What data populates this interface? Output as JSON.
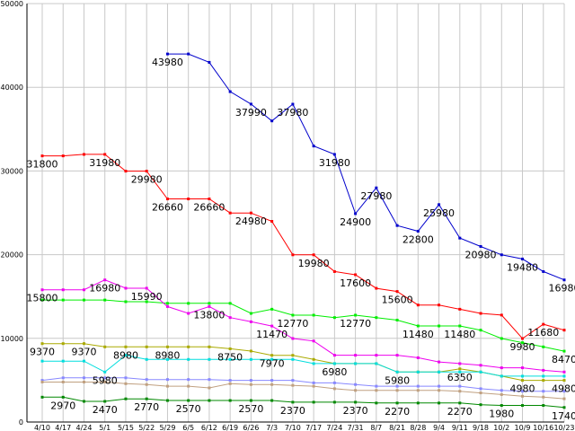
{
  "chart_data": {
    "type": "line",
    "x": [
      "4/10",
      "4/17",
      "4/24",
      "5/1",
      "5/15",
      "5/22",
      "5/29",
      "6/5",
      "6/12",
      "6/19",
      "6/26",
      "7/3",
      "7/10",
      "7/17",
      "7/24",
      "7/31",
      "8/7",
      "8/21",
      "8/28",
      "9/4",
      "9/11",
      "9/18",
      "10/2",
      "10/9",
      "10/16",
      "10/23"
    ],
    "yticks": [
      0,
      10000,
      20000,
      30000,
      40000,
      50000
    ],
    "ylim": [
      0,
      50000
    ],
    "grid": true,
    "series": [
      {
        "color": "#0000cc",
        "values": [
          null,
          null,
          null,
          null,
          null,
          null,
          43980,
          43980,
          42980,
          39480,
          37990,
          35980,
          37980,
          32980,
          31980,
          24900,
          27980,
          23480,
          22800,
          25980,
          21980,
          20980,
          19980,
          19480,
          17980,
          16980
        ],
        "labels": [
          null,
          null,
          null,
          null,
          null,
          null,
          "43980",
          null,
          null,
          null,
          "37990",
          null,
          "37980",
          null,
          "31980",
          "24900",
          "27980",
          null,
          "22800",
          "25980",
          null,
          "20980",
          null,
          "19480",
          null,
          "16980"
        ]
      },
      {
        "color": "#ff0000",
        "values": [
          31800,
          31800,
          31980,
          31980,
          29980,
          29980,
          26660,
          26660,
          26660,
          24980,
          24980,
          23980,
          19980,
          19980,
          17980,
          17600,
          15980,
          15600,
          13980,
          13980,
          13480,
          12980,
          12780,
          9980,
          11680,
          10980
        ],
        "labels": [
          "31800",
          null,
          null,
          "31980",
          null,
          "29980",
          "26660",
          null,
          "26660",
          null,
          "24980",
          null,
          null,
          "19980",
          null,
          "17600",
          null,
          "15600",
          null,
          null,
          null,
          null,
          null,
          "9980",
          "11680",
          null
        ]
      },
      {
        "color": "#00ee00",
        "values": [
          14580,
          14580,
          14580,
          14580,
          14380,
          14380,
          14180,
          14180,
          14180,
          14180,
          12980,
          13480,
          12770,
          12770,
          12480,
          12770,
          12480,
          12180,
          11480,
          11480,
          11480,
          10980,
          9980,
          9480,
          8980,
          8470
        ],
        "labels": [
          null,
          null,
          null,
          null,
          null,
          null,
          null,
          null,
          null,
          null,
          null,
          null,
          "12770",
          null,
          null,
          "12770",
          null,
          null,
          "11480",
          null,
          "11480",
          null,
          null,
          null,
          null,
          "8470"
        ]
      },
      {
        "color": "#ee00ee",
        "values": [
          15800,
          15800,
          15800,
          16980,
          15990,
          15990,
          13800,
          12980,
          13800,
          12480,
          11980,
          11470,
          9980,
          9680,
          7980,
          7980,
          7980,
          7980,
          7680,
          7180,
          6980,
          6780,
          6480,
          6480,
          6180,
          5980
        ],
        "labels": [
          "15800",
          null,
          null,
          "16980",
          null,
          "15990",
          null,
          null,
          "13800",
          null,
          null,
          "11470",
          null,
          null,
          null,
          null,
          null,
          null,
          null,
          null,
          null,
          null,
          null,
          null,
          null,
          null
        ]
      },
      {
        "color": "#aaaa00",
        "values": [
          9370,
          9370,
          9370,
          8980,
          8980,
          8980,
          8980,
          8980,
          8980,
          8750,
          8480,
          7970,
          7970,
          7480,
          6980,
          6980,
          6980,
          5980,
          5980,
          5980,
          6350,
          5980,
          5480,
          4980,
          4980,
          4980
        ],
        "labels": [
          "9370",
          null,
          "9370",
          null,
          "8980",
          null,
          "8980",
          null,
          null,
          "8750",
          null,
          "7970",
          null,
          null,
          "6980",
          null,
          null,
          "5980",
          null,
          null,
          "6350",
          null,
          null,
          "4980",
          null,
          "4980"
        ]
      },
      {
        "color": "#00dddd",
        "values": [
          7280,
          7280,
          7280,
          5980,
          7980,
          7480,
          7480,
          7480,
          7480,
          7480,
          7480,
          7480,
          7480,
          6980,
          6980,
          6980,
          6980,
          5980,
          5980,
          5980,
          5980,
          5980,
          5480,
          5480,
          5480,
          5480
        ],
        "labels": [
          null,
          null,
          null,
          "5980",
          null,
          null,
          null,
          null,
          null,
          null,
          null,
          null,
          null,
          null,
          null,
          null,
          null,
          null,
          null,
          null,
          null,
          null,
          null,
          null,
          null,
          null
        ]
      },
      {
        "color": "#8888ff",
        "values": [
          4980,
          5280,
          5280,
          5280,
          5280,
          5080,
          5080,
          5080,
          5080,
          4980,
          4980,
          4980,
          4980,
          4680,
          4680,
          4480,
          4280,
          4280,
          4280,
          4280,
          4280,
          3980,
          3780,
          3680,
          3680,
          3680
        ],
        "labels": [
          null,
          null,
          null,
          null,
          null,
          null,
          null,
          null,
          null,
          null,
          null,
          null,
          null,
          null,
          null,
          null,
          null,
          null,
          null,
          null,
          null,
          null,
          null,
          null,
          null,
          null
        ]
      },
      {
        "color": "#c0a080",
        "values": [
          4780,
          4780,
          4780,
          4780,
          4580,
          4480,
          4280,
          4280,
          4080,
          4580,
          4480,
          4480,
          4380,
          4280,
          3980,
          3780,
          3780,
          3780,
          3780,
          3780,
          3680,
          3480,
          3280,
          3080,
          2980,
          2780
        ],
        "labels": [
          null,
          null,
          null,
          null,
          null,
          null,
          null,
          null,
          null,
          null,
          null,
          null,
          null,
          null,
          null,
          null,
          null,
          null,
          null,
          null,
          null,
          null,
          null,
          null,
          null,
          null
        ]
      },
      {
        "color": "#008800",
        "values": [
          2970,
          2970,
          2470,
          2470,
          2770,
          2770,
          2570,
          2570,
          2570,
          2570,
          2570,
          2570,
          2370,
          2370,
          2370,
          2370,
          2270,
          2270,
          2270,
          2270,
          2270,
          2070,
          1980,
          1980,
          1980,
          1740
        ],
        "labels": [
          null,
          "2970",
          null,
          "2470",
          null,
          "2770",
          null,
          "2570",
          null,
          null,
          "2570",
          null,
          "2370",
          null,
          null,
          "2370",
          null,
          "2270",
          null,
          null,
          "2270",
          null,
          "1980",
          null,
          null,
          "1740"
        ]
      }
    ]
  }
}
